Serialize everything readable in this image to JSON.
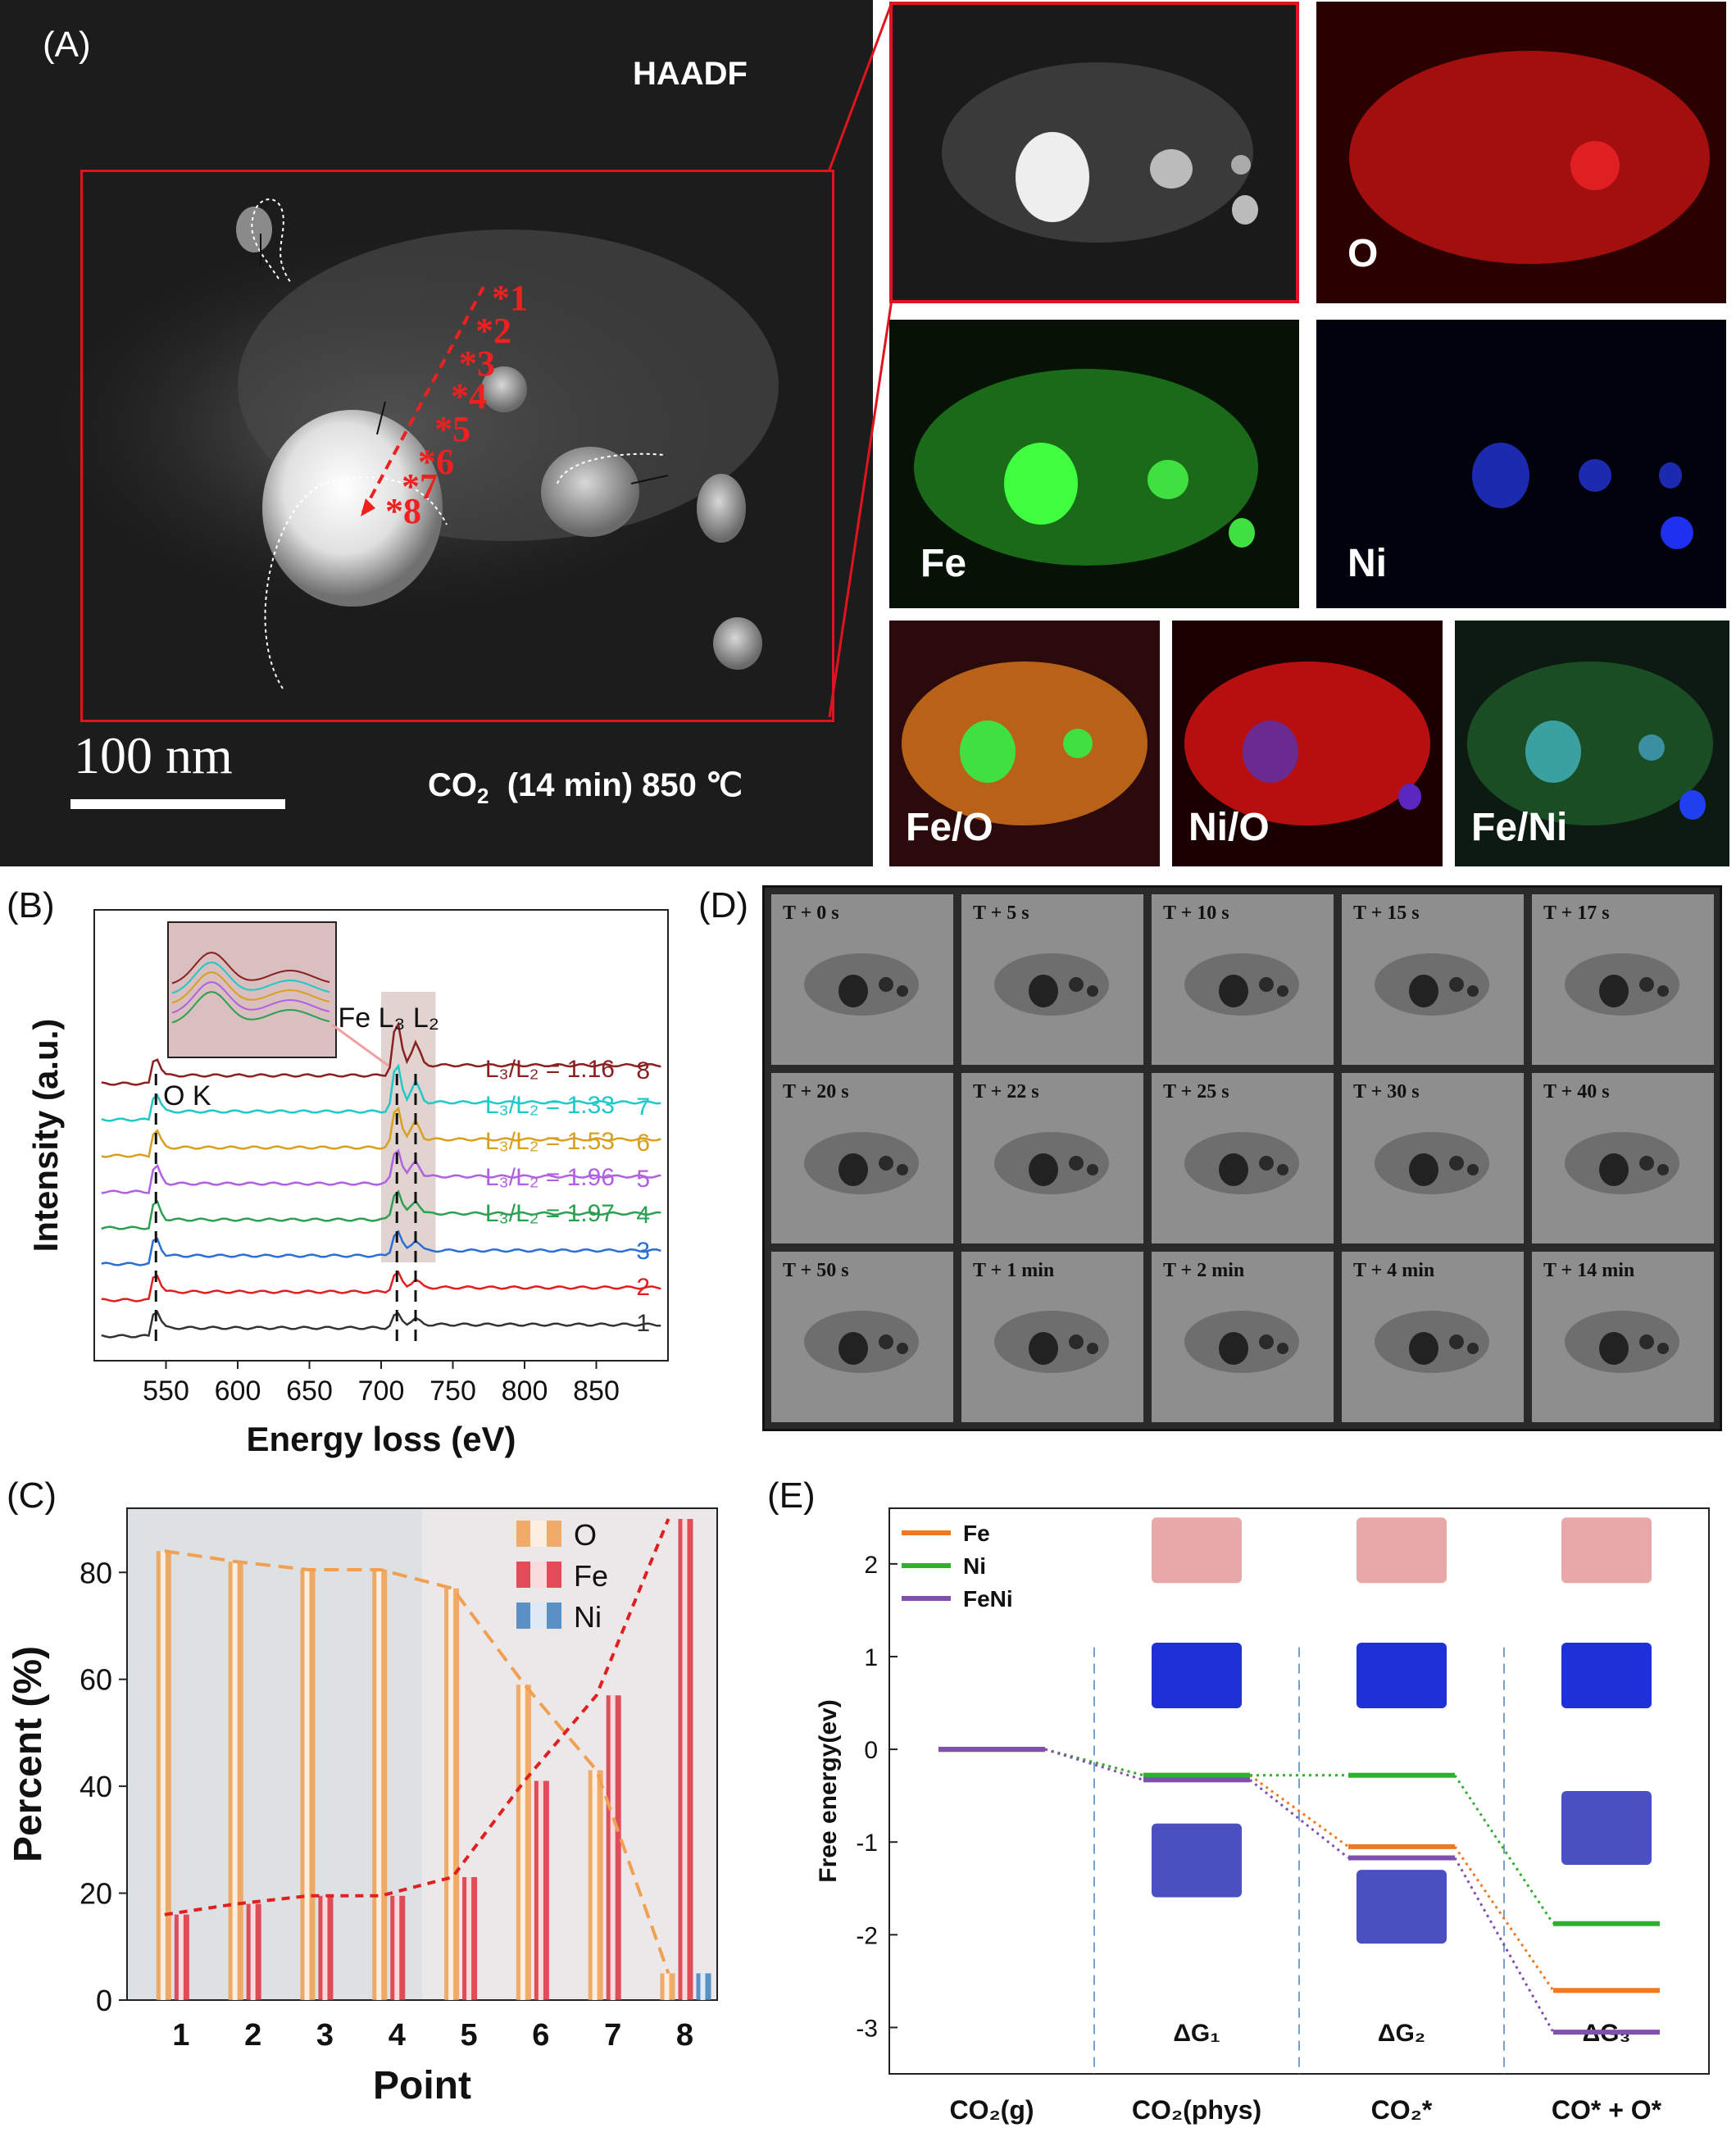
{
  "panel_labels": {
    "a": "(A)",
    "b": "(B)",
    "c": "(C)",
    "d": "(D)",
    "e": "(E)"
  },
  "panel_a": {
    "mode_label": "HAADF",
    "scale_bar": "100 nm",
    "condition_prefix": "CO",
    "condition_subscript": "2",
    "condition_suffix": "(14 min)  850 ℃",
    "points": [
      "*1",
      "*2",
      "*3",
      "*4",
      "*5",
      "*6",
      "*7",
      "*8"
    ],
    "maps": [
      {
        "label": "",
        "color": "#9a9a9a"
      },
      {
        "label": "O",
        "color": "#c01010"
      },
      {
        "label": "Fe",
        "color": "#22a022"
      },
      {
        "label": "Ni",
        "color": "#1428c8"
      },
      {
        "label": "Fe/O",
        "color": "#b84a1a"
      },
      {
        "label": "Ni/O",
        "color": "#c0141a"
      },
      {
        "label": "Fe/Ni",
        "color": "#1f6a3a"
      }
    ]
  },
  "panel_d": {
    "frames": [
      "T + 0 s",
      "T + 5 s",
      "T + 10 s",
      "T + 15 s",
      "T + 17 s",
      "T + 20 s",
      "T + 22 s",
      "T + 25 s",
      "T + 30 s",
      "T + 40 s",
      "T + 50 s",
      "T + 1 min",
      "T + 2 min",
      "T + 4 min",
      "T + 14 min"
    ]
  },
  "chart_data": [
    {
      "id": "B",
      "type": "line",
      "xlabel": "Energy loss (eV)",
      "ylabel": "Intensity (a.u.)",
      "xlim": [
        500,
        900
      ],
      "xticks": [
        550,
        600,
        650,
        700,
        750,
        800,
        850
      ],
      "annotations": {
        "ok": "O K",
        "fe_edge": "Fe L₃ L₂"
      },
      "series": [
        {
          "name": "1",
          "color": "#333333",
          "ratio": ""
        },
        {
          "name": "2",
          "color": "#e02020",
          "ratio": ""
        },
        {
          "name": "3",
          "color": "#2a6fd6",
          "ratio": ""
        },
        {
          "name": "4",
          "color": "#2aa050",
          "ratio": "L₃/L₂ = 1.97"
        },
        {
          "name": "5",
          "color": "#b060e0",
          "ratio": "L₃/L₂ = 1.96"
        },
        {
          "name": "6",
          "color": "#d8a020",
          "ratio": "L₃/L₂ = 1.53"
        },
        {
          "name": "7",
          "color": "#20c8c8",
          "ratio": "L₃/L₂ = 1.33"
        },
        {
          "name": "8",
          "color": "#8a2020",
          "ratio": "L₃/L₂ = 1.16"
        }
      ]
    },
    {
      "id": "C",
      "type": "bar",
      "xlabel": "Point",
      "ylabel": "Percent (%)",
      "categories": [
        "1",
        "2",
        "3",
        "4",
        "5",
        "6",
        "7",
        "8"
      ],
      "ylim": [
        0,
        92
      ],
      "yticks": [
        0,
        20,
        40,
        60,
        80
      ],
      "legend": "top-right",
      "series": [
        {
          "name": "O",
          "color": "#f0a050",
          "values": [
            84,
            82,
            80.5,
            80.5,
            77,
            59,
            43,
            5
          ]
        },
        {
          "name": "Fe",
          "color": "#e03040",
          "values": [
            16,
            18,
            19.5,
            19.5,
            23,
            41,
            57,
            90
          ]
        },
        {
          "name": "Ni",
          "color": "#4080c0",
          "values": [
            0,
            0,
            0,
            0,
            0,
            0,
            0,
            5
          ]
        }
      ]
    },
    {
      "id": "E",
      "type": "line",
      "ylabel": "Free energy(ev)",
      "ylim": [
        -3.5,
        2.6
      ],
      "yticks": [
        2,
        1,
        0,
        -1,
        -2,
        -3
      ],
      "categories": [
        "CO₂(g)",
        "CO₂(phys)",
        "CO₂*",
        "CO* + O*"
      ],
      "steps": [
        "ΔG₁",
        "ΔG₂",
        "ΔG₃"
      ],
      "legend": "top-left",
      "series": [
        {
          "name": "Fe",
          "color": "#f07820",
          "values": [
            0,
            -0.28,
            -1.05,
            -2.6
          ]
        },
        {
          "name": "Ni",
          "color": "#30b030",
          "values": [
            0,
            -0.28,
            -0.28,
            -1.88
          ]
        },
        {
          "name": "FeNi",
          "color": "#8050b0",
          "values": [
            0,
            -0.33,
            -1.17,
            -3.05
          ]
        }
      ]
    }
  ]
}
